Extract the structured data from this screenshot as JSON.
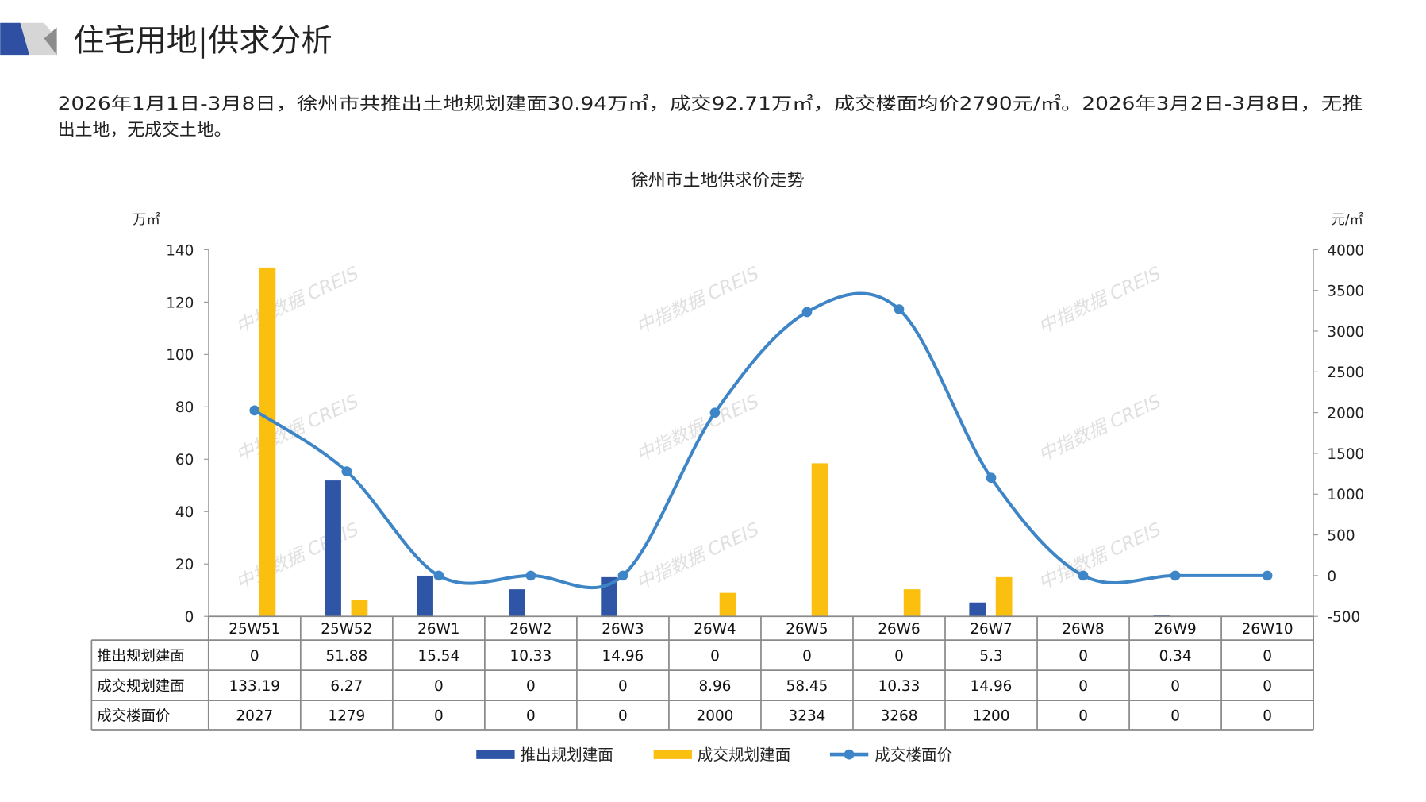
{
  "header": {
    "title": "住宅用地|供求分析",
    "summary_line1": "2026年1月1日-3月8日，徐州市共推出土地规划建面30.94万㎡，成交92.71万㎡，成交楼面均价2790元/㎡。2026年3月2日-3月8日，无推",
    "summary_line2": "出土地，无成交土地。",
    "logo_colors": [
      "#2f4fa3",
      "#c9c9c9",
      "#8c8c8c"
    ]
  },
  "watermark": "中指数据 CREIS",
  "chart_data": {
    "type": "bar+line",
    "title": "徐州市土地供求价走势",
    "ylabel_left": "万㎡",
    "ylabel_right": "元/㎡",
    "ylim_left": [
      0,
      140
    ],
    "yticks_left": [
      0,
      20,
      40,
      60,
      80,
      100,
      120,
      140
    ],
    "ylim_right": [
      -500,
      4000
    ],
    "yticks_right": [
      -500,
      0,
      500,
      1000,
      1500,
      2000,
      2500,
      3000,
      3500,
      4000
    ],
    "grid": false,
    "legend_position": "bottom",
    "categories": [
      "25W51",
      "25W52",
      "26W1",
      "26W2",
      "26W3",
      "26W4",
      "26W5",
      "26W6",
      "26W7",
      "26W8",
      "26W9",
      "26W10"
    ],
    "series": [
      {
        "name": "推出规划建面",
        "type": "bar",
        "axis": "left",
        "color": "#2f56a6",
        "values": [
          0,
          51.88,
          15.54,
          10.33,
          14.96,
          0,
          0,
          0,
          5.3,
          0,
          0.34,
          0
        ],
        "labels": [
          "0",
          "51.88",
          "15.54",
          "10.33",
          "14.96",
          "0",
          "0",
          "0",
          "5.3",
          "0",
          "0.34",
          "0"
        ]
      },
      {
        "name": "成交规划建面",
        "type": "bar",
        "axis": "left",
        "color": "#fbbf0f",
        "values": [
          133.19,
          6.27,
          0,
          0,
          0,
          8.96,
          58.45,
          10.33,
          14.96,
          0,
          0,
          0
        ],
        "labels": [
          "133.19",
          "6.27",
          "0",
          "0",
          "0",
          "8.96",
          "58.45",
          "10.33",
          "14.96",
          "0",
          "0",
          "0"
        ]
      },
      {
        "name": "成交楼面价",
        "type": "line",
        "axis": "right",
        "color": "#3d85c6",
        "values": [
          2027,
          1279,
          0,
          0,
          0,
          2000,
          3234,
          3268,
          1200,
          0,
          0,
          0
        ],
        "labels": [
          "2027",
          "1279",
          "0",
          "0",
          "0",
          "2000",
          "3234",
          "3268",
          "1200",
          "0",
          "0",
          "0"
        ]
      }
    ]
  }
}
